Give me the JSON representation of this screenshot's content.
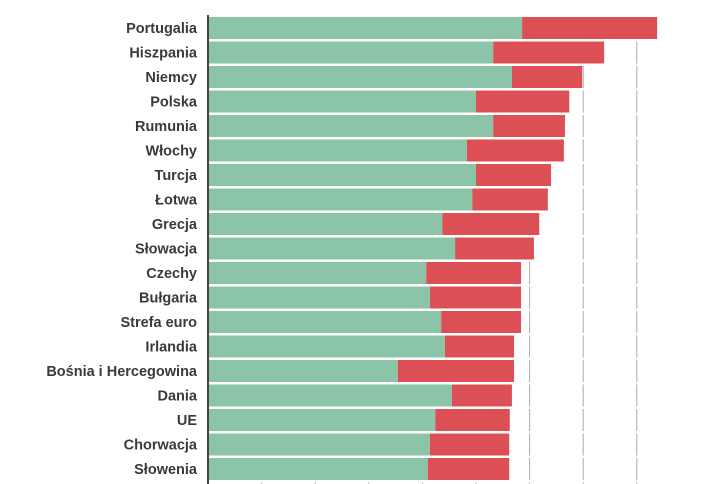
{
  "chart_data": {
    "type": "bar",
    "orientation": "horizontal",
    "stacked": true,
    "grid": true,
    "legend": "none",
    "xlim": [
      0,
      8.5
    ],
    "categories": [
      "Portugalia",
      "Hiszpania",
      "Niemcy",
      "Polska",
      "Rumunia",
      "Włochy",
      "Turcja",
      "Łotwa",
      "Grecja",
      "Słowacja",
      "Czechy",
      "Bułgaria",
      "Strefa euro",
      "Irlandia",
      "Bośnia i Hercegowina",
      "Dania",
      "UE",
      "Chorwacja",
      "Słowenia"
    ],
    "series": [
      {
        "color": "#8cc4a8",
        "values": [
          5.86,
          5.32,
          5.67,
          5.0,
          5.32,
          4.83,
          5.0,
          4.93,
          4.37,
          4.61,
          4.07,
          4.14,
          4.35,
          4.42,
          3.54,
          4.55,
          4.24,
          4.14,
          4.1
        ]
      },
      {
        "color": "#dc5055",
        "values": [
          2.52,
          2.07,
          1.31,
          1.74,
          1.34,
          1.81,
          1.4,
          1.41,
          1.81,
          1.47,
          1.77,
          1.7,
          1.49,
          1.29,
          2.17,
          1.12,
          1.39,
          1.48,
          1.52
        ]
      }
    ]
  }
}
